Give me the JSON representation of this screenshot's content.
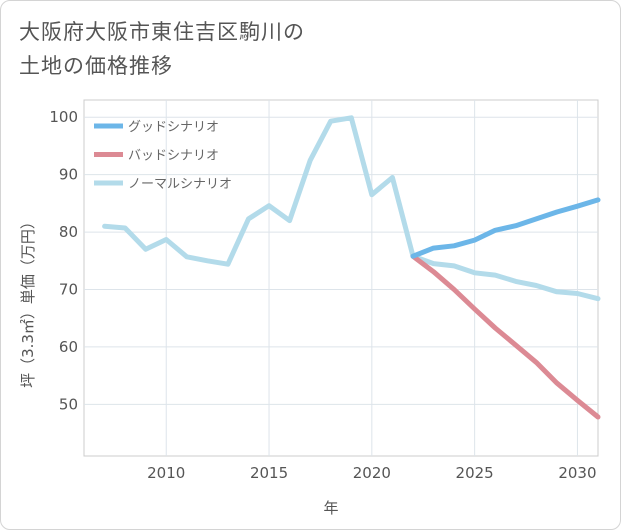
{
  "title_line1": "大阪府大阪市東住吉区駒川の",
  "title_line2": "土地の価格推移",
  "chart_data": {
    "type": "line",
    "title": "大阪府大阪市東住吉区駒川の土地の価格推移",
    "xlabel": "年",
    "ylabel": "坪（3.3㎡）単価（万円）",
    "xlim": [
      2006,
      2031
    ],
    "ylim": [
      41,
      103
    ],
    "xticks": [
      2010,
      2015,
      2020,
      2025,
      2030
    ],
    "yticks": [
      50,
      60,
      70,
      80,
      90,
      100
    ],
    "grid": true,
    "legend_position": "top-left",
    "series": [
      {
        "name": "グッドシナリオ",
        "color": "#6cb6e8",
        "x": [
          2022,
          2023,
          2024,
          2025,
          2026,
          2027,
          2028,
          2029,
          2030,
          2031
        ],
        "y": [
          75.8,
          77.2,
          77.6,
          78.6,
          80.3,
          81.1,
          82.3,
          83.5,
          84.5,
          85.6
        ]
      },
      {
        "name": "バッドシナリオ",
        "color": "#dc8a94",
        "x": [
          2022,
          2023,
          2024,
          2025,
          2026,
          2027,
          2028,
          2029,
          2030,
          2031
        ],
        "y": [
          75.8,
          73.1,
          70.0,
          66.6,
          63.3,
          60.3,
          57.3,
          53.7,
          50.7,
          47.8
        ]
      },
      {
        "name": "ノーマルシナリオ",
        "color": "#b3dbea",
        "x": [
          2007,
          2008,
          2009,
          2010,
          2011,
          2012,
          2013,
          2014,
          2015,
          2016,
          2017,
          2018,
          2019,
          2020,
          2021,
          2022,
          2023,
          2024,
          2025,
          2026,
          2027,
          2028,
          2029,
          2030,
          2031
        ],
        "y": [
          81.0,
          80.7,
          77.0,
          78.7,
          75.7,
          75.0,
          74.4,
          82.3,
          84.6,
          82.0,
          92.5,
          99.3,
          99.9,
          86.5,
          89.5,
          75.8,
          74.5,
          74.1,
          72.9,
          72.5,
          71.4,
          70.7,
          69.6,
          69.3,
          68.4
        ]
      }
    ]
  }
}
